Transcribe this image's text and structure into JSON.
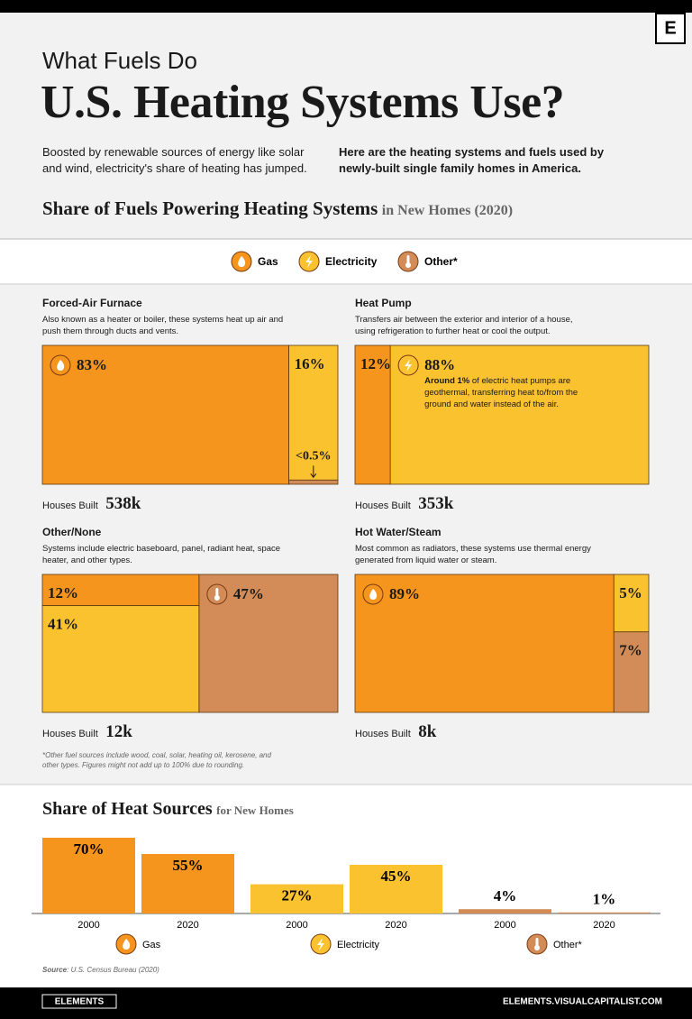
{
  "brand": "E",
  "header": {
    "kicker": "What Fuels Do",
    "title": "U.S. Heating Systems Use?",
    "intro_left": "Boosted by renewable sources of energy like solar and wind, electricity's share of heating has jumped.",
    "intro_right": "Here are the heating systems and fuels used by newly-built single family homes in America."
  },
  "section_fuels": {
    "title": "Share of Fuels Powering Heating Systems",
    "subtitle": "in New Homes (2020)"
  },
  "fuels": [
    {
      "name": "Gas",
      "color": "#f5951d"
    },
    {
      "name": "Electricity",
      "color": "#fbc230"
    },
    {
      "name": "Other*",
      "color": "#d38c57"
    }
  ],
  "chart_data": [
    {
      "type": "treemap",
      "title": "Forced-Air Furnace",
      "description": "Also known as a heater or boiler, these systems heat up air and push them through ducts and vents.",
      "values": [
        83,
        16,
        0.5
      ],
      "value_labels": [
        "83%",
        "16%",
        "<0.5%"
      ],
      "houses_label": "Houses Built",
      "houses_built": "538k"
    },
    {
      "type": "treemap",
      "title": "Heat Pump",
      "description": "Transfers air between the exterior and interior of a house, using refrigeration to further heat or cool the output.",
      "values": [
        12,
        88,
        null
      ],
      "value_labels": [
        "12%",
        "88%",
        null
      ],
      "note": {
        "bold": "Around 1%",
        "text": "of electric heat pumps are geothermal, transferring heat to/from the ground and water instead of the air."
      },
      "houses_label": "Houses Built",
      "houses_built": "353k"
    },
    {
      "type": "treemap",
      "title": "Other/None",
      "description": "Systems include electric baseboard, panel, radiant heat, space heater, and other types.",
      "values": [
        12,
        41,
        47
      ],
      "value_labels": [
        "12%",
        "41%",
        "47%"
      ],
      "houses_label": "Houses Built",
      "houses_built": "12k"
    },
    {
      "type": "treemap",
      "title": "Hot Water/Steam",
      "description": "Most common as radiators, these systems use thermal energy generated from liquid water or steam.",
      "values": [
        89,
        5,
        7
      ],
      "value_labels": [
        "89%",
        "5%",
        "7%"
      ],
      "houses_label": "Houses Built",
      "houses_built": "8k"
    },
    {
      "type": "bar",
      "title": "Share of Heat Sources",
      "subtitle": "for New Homes",
      "categories": [
        "2000",
        "2020"
      ],
      "series": [
        {
          "name": "Gas",
          "color": "#f5951d",
          "values": [
            70,
            55
          ],
          "value_labels": [
            "70%",
            "55%"
          ]
        },
        {
          "name": "Electricity",
          "color": "#fbc230",
          "values": [
            27,
            45
          ],
          "value_labels": [
            "27%",
            "45%"
          ]
        },
        {
          "name": "Other*",
          "color": "#d38c57",
          "values": [
            4,
            1
          ],
          "value_labels": [
            "4%",
            "1%"
          ]
        }
      ]
    }
  ],
  "footnote": "*Other fuel sources include wood, coal, solar, heating oil, kerosene, and other types. Figures might not add up to 100% due to rounding.",
  "source": {
    "label": "Source",
    "text": ": U.S. Census Bureau (2020)"
  },
  "footer": {
    "brand": "ELEMENTS",
    "url": "ELEMENTS.VISUALCAPITALIST.COM"
  }
}
